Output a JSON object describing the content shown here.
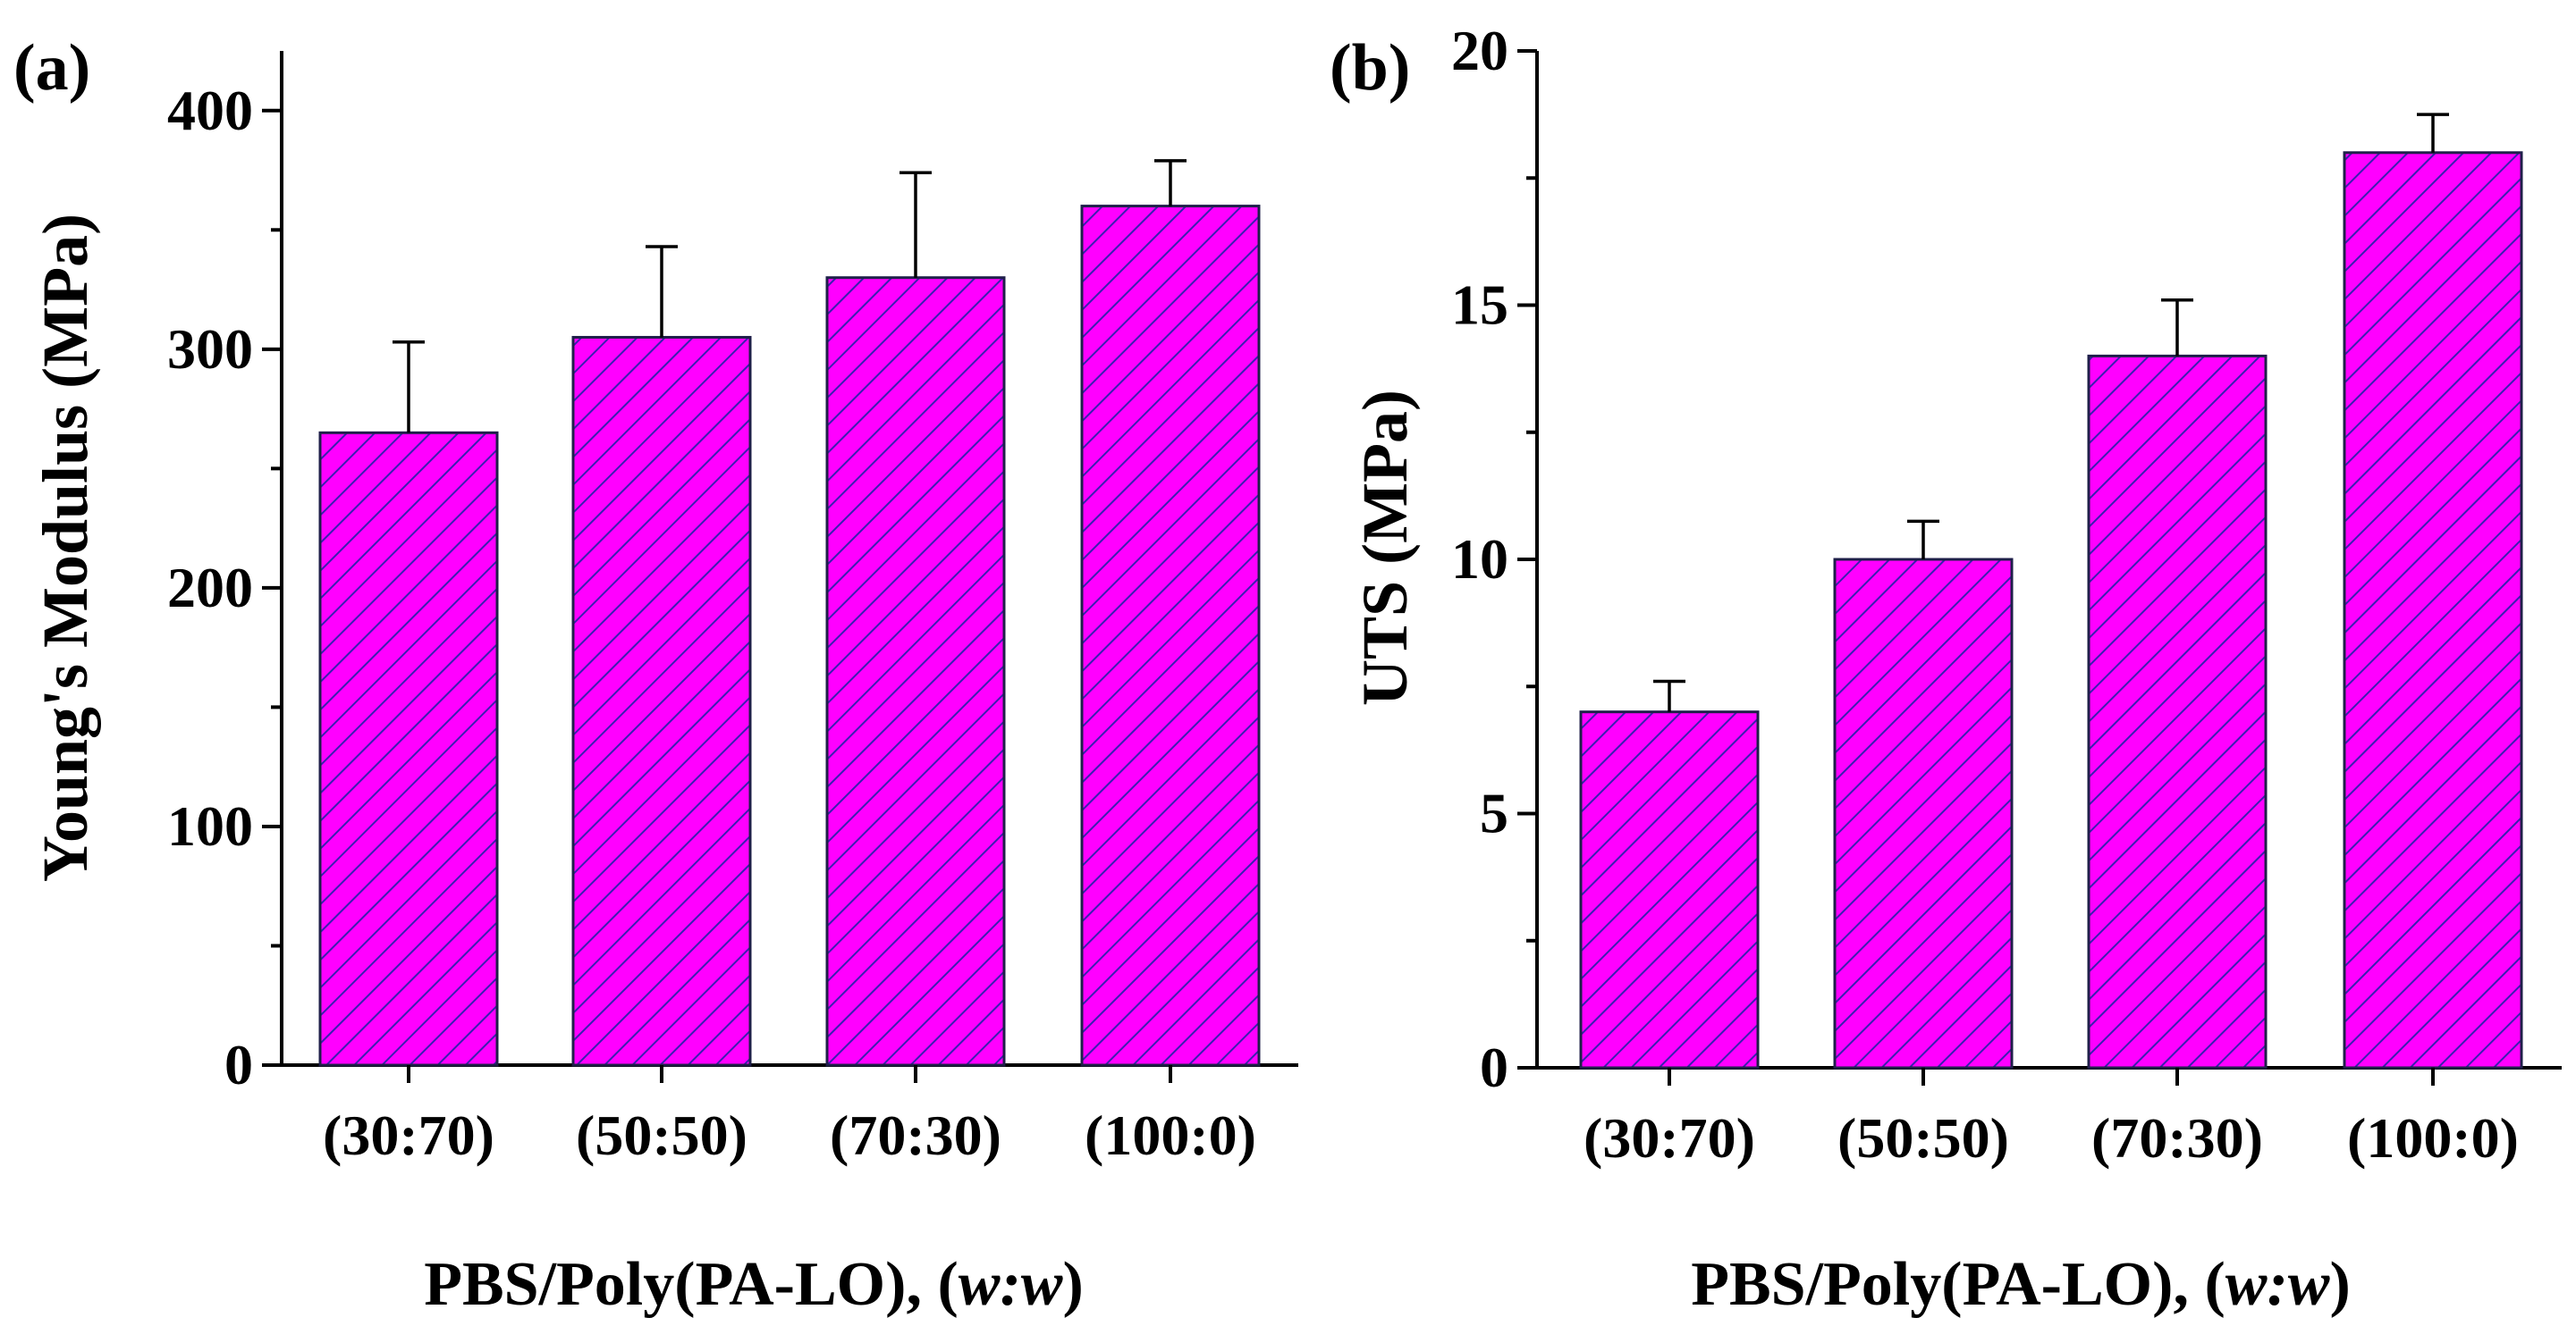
{
  "figure": {
    "bar_fill": "#ff00ff",
    "hatch_color": "#3b1fb0"
  },
  "chart_data": [
    {
      "type": "bar",
      "panel_label": "(a)",
      "title": "",
      "xlabel_prefix": "PBS/Poly(PA-LO), (",
      "xlabel_italic": "w:w",
      "xlabel_suffix": ")",
      "ylabel": "Young's Modulus (MPa)",
      "categories": [
        "(30:70)",
        "(50:50)",
        "(70:30)",
        "(100:0)"
      ],
      "values": [
        265,
        305,
        330,
        360
      ],
      "errors": [
        38,
        38,
        44,
        19
      ],
      "ylim": [
        0,
        425
      ],
      "yticks": [
        0,
        100,
        200,
        300,
        400
      ],
      "yticklabels": [
        "0",
        "100",
        "200",
        "300",
        "400"
      ],
      "minor_step": 50,
      "grid": false
    },
    {
      "type": "bar",
      "panel_label": "(b)",
      "title": "",
      "xlabel_prefix": "PBS/Poly(PA-LO), (",
      "xlabel_italic": "w:w",
      "xlabel_suffix": ")",
      "ylabel": "UTS (MPa)",
      "categories": [
        "(30:70)",
        "(50:50)",
        "(70:30)",
        "(100:0)"
      ],
      "values": [
        7,
        10,
        14,
        18
      ],
      "errors": [
        0.6,
        0.75,
        1.1,
        0.75
      ],
      "ylim": [
        0,
        20
      ],
      "yticks": [
        0,
        5,
        10,
        15,
        20
      ],
      "yticklabels": [
        "0",
        "5",
        "10",
        "15",
        "20"
      ],
      "minor_step": 2.5,
      "grid": false
    }
  ]
}
